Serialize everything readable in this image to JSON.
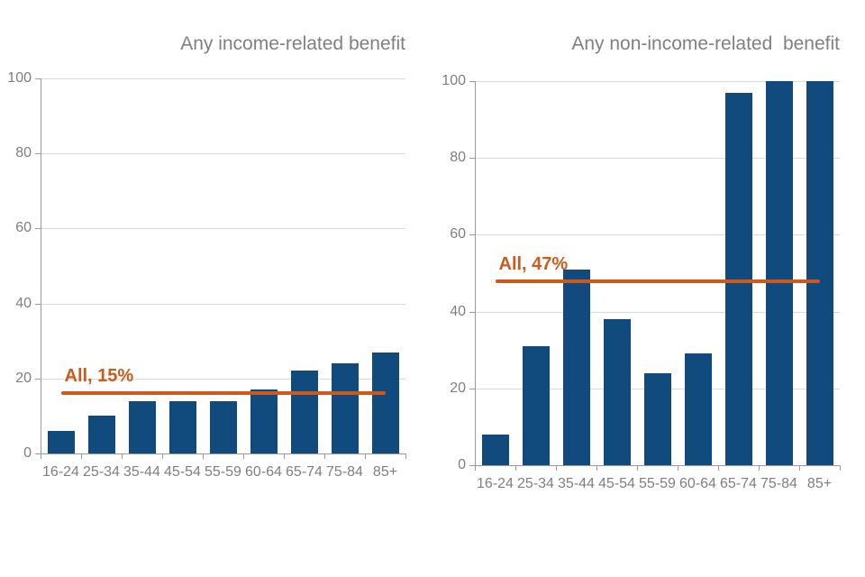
{
  "figure": {
    "background": "#ffffff"
  },
  "colors": {
    "bar": "#114b7e",
    "reference_line": "#cd5a1a",
    "title_text": "#808080",
    "axis_text": "#7f7f7f",
    "gridline": "#d9d9d9",
    "axis_line": "#9b9b9b"
  },
  "chart_data": [
    {
      "type": "bar",
      "title": "Any income-related benefit",
      "categories": [
        "16-24",
        "25-34",
        "35-44",
        "45-54",
        "55-59",
        "60-64",
        "65-74",
        "75-84",
        "85+"
      ],
      "values": [
        6,
        10,
        14,
        14,
        14,
        17,
        22,
        24,
        27
      ],
      "xlabel": "",
      "ylabel": "",
      "ylim": [
        0,
        100
      ],
      "yticks": [
        0,
        20,
        40,
        60,
        80,
        100
      ],
      "grid": "horizontal",
      "legend": "none",
      "bar_color": "#114b7e",
      "reference_line": {
        "label": "All, 15%",
        "value": 15,
        "drawn_at": 16,
        "color": "#cd5a1a"
      }
    },
    {
      "type": "bar",
      "title": "Any non-income-related  benefit",
      "categories": [
        "16-24",
        "25-34",
        "35-44",
        "45-54",
        "55-59",
        "60-64",
        "65-74",
        "75-84",
        "85+"
      ],
      "values": [
        8,
        31,
        51,
        38,
        24,
        29,
        97,
        100,
        100
      ],
      "xlabel": "",
      "ylabel": "",
      "ylim": [
        0,
        100
      ],
      "yticks": [
        0,
        20,
        40,
        60,
        80,
        100
      ],
      "grid": "horizontal",
      "legend": "none",
      "bar_color": "#114b7e",
      "reference_line": {
        "label": "All, 47%",
        "value": 47,
        "drawn_at": 48,
        "color": "#cd5a1a"
      }
    }
  ]
}
